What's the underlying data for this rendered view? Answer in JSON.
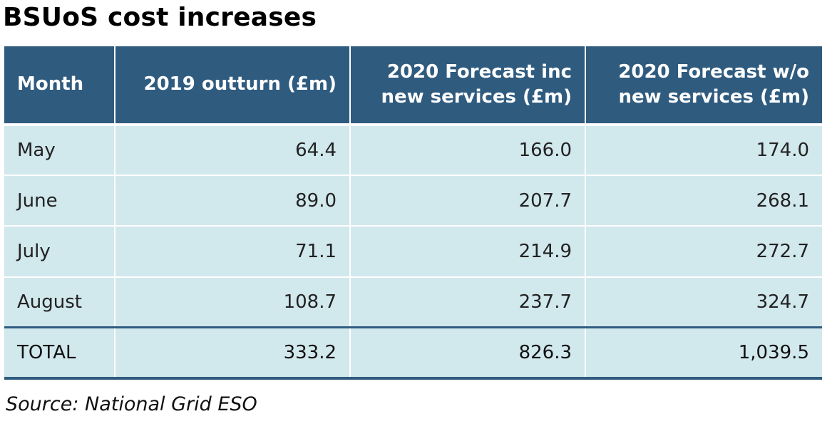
{
  "title": "BSUoS cost increases",
  "table": {
    "headers": [
      "Month",
      "2019 outturn (£m)",
      "2020 Forecast inc new services (£m)",
      "2020 Forecast w/o new services (£m)"
    ],
    "rows": [
      [
        "May",
        "64.4",
        "166.0",
        "174.0"
      ],
      [
        "June",
        "89.0",
        "207.7",
        "268.1"
      ],
      [
        "July",
        "71.1",
        "214.9",
        "272.7"
      ],
      [
        "August",
        "108.7",
        "237.7",
        "324.7"
      ]
    ],
    "total": [
      "TOTAL",
      "333.2",
      "826.3",
      "1,039.5"
    ]
  },
  "source": "Source: National Grid ESO",
  "colors": {
    "header_bg": "#2f5b7f",
    "body_bg": "#d1e8ed",
    "header_text": "#ffffff"
  }
}
